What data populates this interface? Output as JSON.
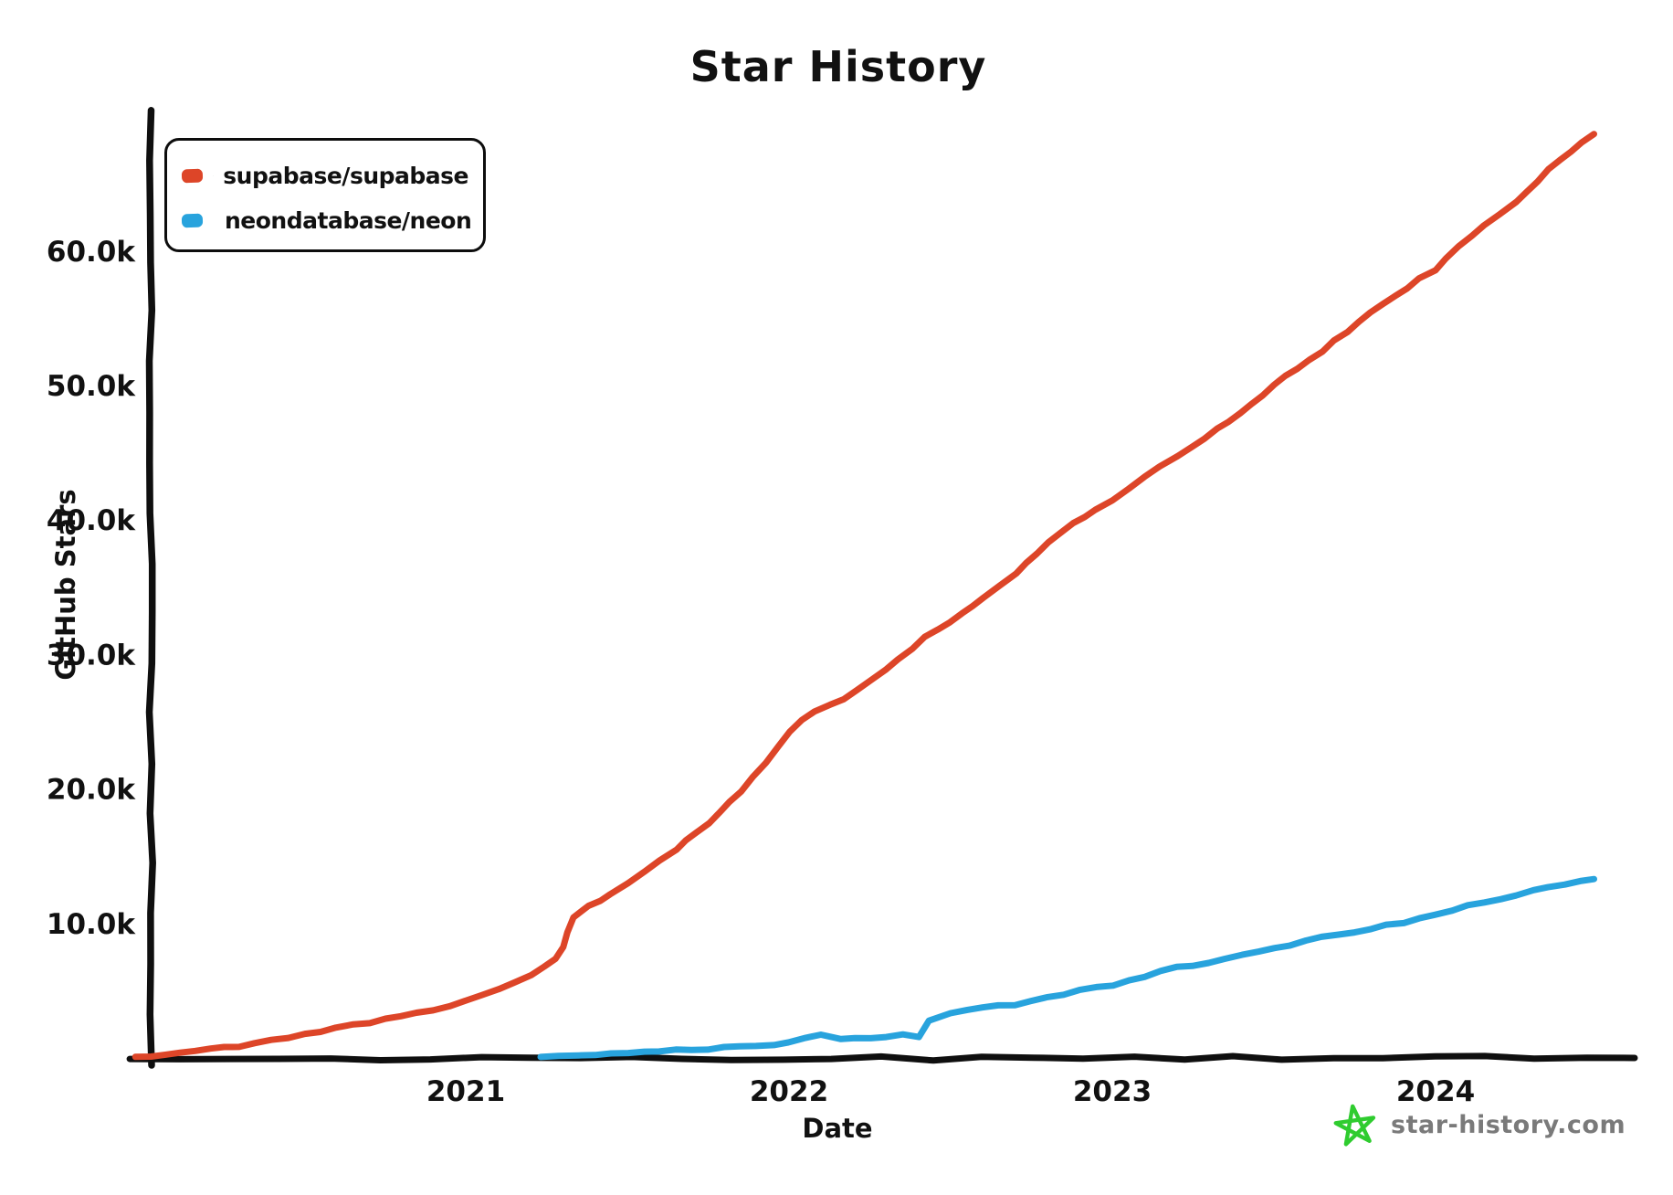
{
  "title": "Star History",
  "legend": {
    "items": [
      {
        "label": "supabase/supabase",
        "color": "#dd4528",
        "icon": "supabase-logo"
      },
      {
        "label": "neondatabase/neon",
        "color": "#28a3dd",
        "icon": "neon-logo"
      }
    ]
  },
  "watermark": {
    "text": "star-history.com",
    "icon": "hand-drawn-star"
  },
  "colors": {
    "axis": "#0f0f0f",
    "supabase_line": "#dd4528",
    "neon_line": "#28a3dd",
    "watermark_text": "#7a7a7a",
    "star_green": "#2fcc2f",
    "supabase_icon_bg": "#1c1c1c",
    "supabase_icon_bolt": "#3ecf8e",
    "neon_icon_green": "#00cc88",
    "neon_icon_dark": "#1e2b3a"
  },
  "chart_data": {
    "type": "line",
    "title": "Star History",
    "xlabel": "Date",
    "ylabel": "GitHub Stars",
    "legend_position": "top-left",
    "grid": false,
    "x_range_years": [
      2019.98,
      2024.62
    ],
    "y_range_k": [
      0,
      70.5
    ],
    "x_ticks": [
      {
        "t": 2021,
        "label": "2021"
      },
      {
        "t": 2022,
        "label": "2022"
      },
      {
        "t": 2023,
        "label": "2023"
      },
      {
        "t": 2024,
        "label": "2024"
      }
    ],
    "y_ticks": [
      {
        "v": 10,
        "label": "10.0k"
      },
      {
        "v": 20,
        "label": "20.0k"
      },
      {
        "v": 30,
        "label": "30.0k"
      },
      {
        "v": 40,
        "label": "40.0k"
      },
      {
        "v": 50,
        "label": "50.0k"
      },
      {
        "v": 60,
        "label": "60.0k"
      }
    ],
    "series": [
      {
        "name": "supabase/supabase",
        "color": "#dd4528",
        "units": "thousands of stars",
        "points": [
          [
            2019.98,
            0.05
          ],
          [
            2020.12,
            0.4
          ],
          [
            2020.3,
            0.9
          ],
          [
            2020.45,
            1.5
          ],
          [
            2020.6,
            2.2
          ],
          [
            2020.75,
            2.9
          ],
          [
            2020.9,
            3.6
          ],
          [
            2021.0,
            4.2
          ],
          [
            2021.1,
            5.1
          ],
          [
            2021.2,
            6.2
          ],
          [
            2021.28,
            7.3
          ],
          [
            2021.3,
            8.2
          ],
          [
            2021.33,
            10.4
          ],
          [
            2021.38,
            11.3
          ],
          [
            2021.45,
            12.2
          ],
          [
            2021.55,
            13.8
          ],
          [
            2021.65,
            15.5
          ],
          [
            2021.75,
            17.4
          ],
          [
            2021.85,
            19.8
          ],
          [
            2021.93,
            22.0
          ],
          [
            2022.0,
            24.3
          ],
          [
            2022.08,
            25.8
          ],
          [
            2022.17,
            26.6
          ],
          [
            2022.3,
            28.9
          ],
          [
            2022.42,
            31.3
          ],
          [
            2022.5,
            32.4
          ],
          [
            2022.6,
            34.3
          ],
          [
            2022.7,
            36.0
          ],
          [
            2022.8,
            38.3
          ],
          [
            2022.88,
            39.8
          ],
          [
            2022.95,
            40.7
          ],
          [
            2023.0,
            41.5
          ],
          [
            2023.1,
            43.2
          ],
          [
            2023.25,
            45.5
          ],
          [
            2023.4,
            48.0
          ],
          [
            2023.5,
            50.0
          ],
          [
            2023.65,
            52.6
          ],
          [
            2023.8,
            55.4
          ],
          [
            2023.95,
            57.9
          ],
          [
            2024.0,
            58.6
          ],
          [
            2024.07,
            60.3
          ],
          [
            2024.15,
            61.9
          ],
          [
            2024.25,
            63.7
          ],
          [
            2024.35,
            66.0
          ],
          [
            2024.49,
            68.7
          ]
        ]
      },
      {
        "name": "neondatabase/neon",
        "color": "#28a3dd",
        "units": "thousands of stars",
        "points": [
          [
            2021.23,
            0.05
          ],
          [
            2021.35,
            0.15
          ],
          [
            2021.5,
            0.35
          ],
          [
            2021.65,
            0.6
          ],
          [
            2021.8,
            0.75
          ],
          [
            2021.95,
            1.0
          ],
          [
            2022.05,
            1.45
          ],
          [
            2022.1,
            1.7
          ],
          [
            2022.16,
            1.4
          ],
          [
            2022.25,
            1.45
          ],
          [
            2022.35,
            1.7
          ],
          [
            2022.4,
            1.5
          ],
          [
            2022.43,
            2.8
          ],
          [
            2022.5,
            3.3
          ],
          [
            2022.6,
            3.7
          ],
          [
            2022.7,
            4.0
          ],
          [
            2022.8,
            4.5
          ],
          [
            2022.9,
            5.0
          ],
          [
            2023.0,
            5.4
          ],
          [
            2023.1,
            6.1
          ],
          [
            2023.2,
            6.7
          ],
          [
            2023.3,
            7.1
          ],
          [
            2023.4,
            7.6
          ],
          [
            2023.5,
            8.1
          ],
          [
            2023.6,
            8.7
          ],
          [
            2023.7,
            9.2
          ],
          [
            2023.8,
            9.6
          ],
          [
            2023.9,
            10.1
          ],
          [
            2024.0,
            10.7
          ],
          [
            2024.1,
            11.3
          ],
          [
            2024.2,
            11.8
          ],
          [
            2024.3,
            12.4
          ],
          [
            2024.4,
            12.9
          ],
          [
            2024.49,
            13.3
          ]
        ]
      }
    ]
  }
}
